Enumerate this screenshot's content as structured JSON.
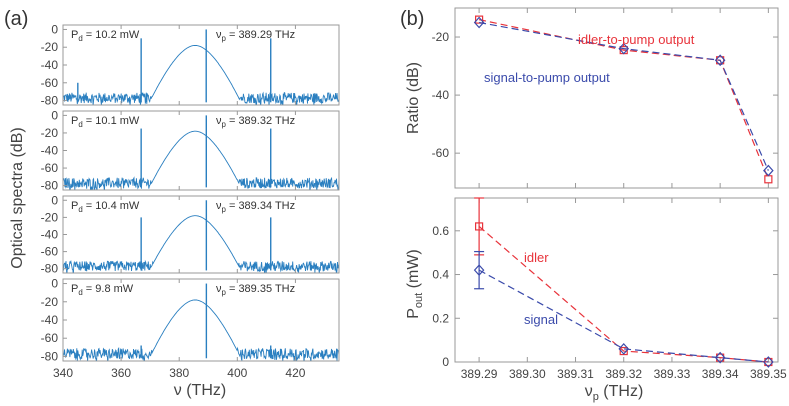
{
  "panel_labels": {
    "a": "(a)",
    "b": "(b)"
  },
  "chart_data": [
    {
      "type": "line",
      "id": "spectra",
      "title": "",
      "xlabel": "ν (THz)",
      "ylabel": "Optical spectra (dB)",
      "xlim": [
        340,
        435
      ],
      "ylim": [
        -85,
        5
      ],
      "xticks": [
        340,
        360,
        380,
        400,
        420
      ],
      "yticks": [
        0,
        -20,
        -40,
        -60,
        -80
      ],
      "grid": false,
      "center_thz": 385.5,
      "subplots": [
        {
          "pd_sym": "P",
          "pd_sub": "d",
          "pd_val": " = 10.2 mW",
          "nu_sym": "ν",
          "nu_sub": "p",
          "nu_val": " = 389.29 THz",
          "peaks": [
            [
              345.1,
              -60
            ],
            [
              366.9,
              -10
            ],
            [
              389.29,
              0
            ],
            [
              411.5,
              -10
            ]
          ]
        },
        {
          "pd_sym": "P",
          "pd_sub": "d",
          "pd_val": " = 10.1 mW",
          "nu_sym": "ν",
          "nu_sub": "p",
          "nu_val": " = 389.32 THz",
          "peaks": [
            [
              366.9,
              -15
            ],
            [
              389.32,
              0
            ],
            [
              411.5,
              -15
            ]
          ]
        },
        {
          "pd_sym": "P",
          "pd_sub": "d",
          "pd_val": " = 10.4 mW",
          "nu_sym": "ν",
          "nu_sub": "p",
          "nu_val": " = 389.34 THz",
          "peaks": [
            [
              366.9,
              -20
            ],
            [
              389.34,
              0
            ],
            [
              411.5,
              -20
            ]
          ]
        },
        {
          "pd_sym": "P",
          "pd_sub": "d",
          "pd_val": " = 9.8 mW",
          "nu_sym": "ν",
          "nu_sub": "p",
          "nu_val": " = 389.35 THz",
          "peaks": [
            [
              366.9,
              -68
            ],
            [
              389.35,
              0
            ],
            [
              411.5,
              -68
            ]
          ]
        }
      ]
    },
    {
      "type": "line",
      "id": "ratio",
      "title": "",
      "xlabel": "",
      "ylabel": "Ratio (dB)",
      "xlim": [
        389.285,
        389.352
      ],
      "ylim": [
        -72,
        -10
      ],
      "yticks": [
        -20,
        -40,
        -60
      ],
      "x": [
        389.29,
        389.32,
        389.34,
        389.35
      ],
      "series": [
        {
          "name": "idler-to-pump output",
          "color": "#e8333b",
          "marker": "square",
          "values": [
            -14,
            -24.5,
            -28,
            -69
          ]
        },
        {
          "name": "signal-to-pump output",
          "color": "#3b4bab",
          "marker": "diamond",
          "values": [
            -15,
            -24,
            -28,
            -66
          ]
        }
      ]
    },
    {
      "type": "line",
      "id": "pout",
      "title": "",
      "xlabel": "ν (THz)",
      "xlabel_sym": "ν",
      "xlabel_sub": "p",
      "xlabel_rest": " (THz)",
      "ylabel": "P out (mW)",
      "ylabel_sym": "P",
      "ylabel_sub": "out",
      "ylabel_rest": " (mW)",
      "xlim": [
        389.285,
        389.352
      ],
      "ylim": [
        0,
        0.75
      ],
      "xticks": [
        389.29,
        389.3,
        389.31,
        389.32,
        389.33,
        389.34,
        389.35
      ],
      "xtick_labels": [
        "389.29",
        "389.30",
        "389.31",
        "389.32",
        "389.33",
        "389.34",
        "389.35"
      ],
      "yticks": [
        0,
        0.2,
        0.4,
        0.6
      ],
      "ytick_labels": [
        "0",
        "0.2",
        "0.4",
        "0.6"
      ],
      "x": [
        389.29,
        389.32,
        389.34,
        389.35
      ],
      "series": [
        {
          "name": "idler",
          "color": "#e8333b",
          "marker": "square",
          "values": [
            0.62,
            0.05,
            0.02,
            0.0
          ],
          "errors": [
            0.13,
            0,
            0,
            0
          ]
        },
        {
          "name": "signal",
          "color": "#3b4bab",
          "marker": "diamond",
          "values": [
            0.42,
            0.06,
            0.02,
            0.0
          ],
          "errors": [
            0.085,
            0,
            0,
            0
          ]
        }
      ]
    }
  ]
}
